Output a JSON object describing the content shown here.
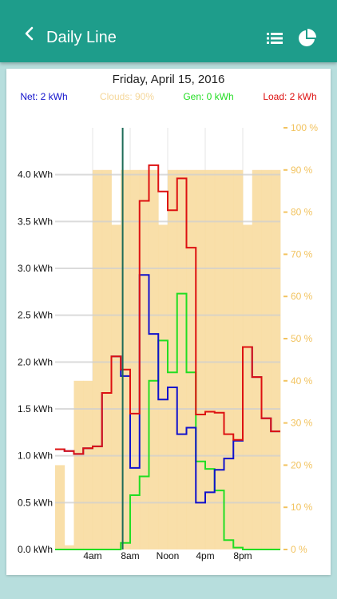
{
  "app_bar": {
    "title": "Daily Line",
    "back_icon": "back-arrow-icon",
    "list_icon": "list-icon",
    "pie_icon": "pie-chart-icon",
    "background": "#1e9d8b"
  },
  "chart_data": {
    "type": "bar+line",
    "title": "Friday, April 15, 2016",
    "legend": [
      {
        "label": "Net: 2 kWh",
        "color": "#1111cc"
      },
      {
        "label": "Clouds: 90%",
        "color": "#f5d79a"
      },
      {
        "label": "Gen: 0 kWh",
        "color": "#22dd22"
      },
      {
        "label": "Load: 2 kWh",
        "color": "#dd1111"
      }
    ],
    "x_ticks": [
      {
        "label": "4am",
        "hour": 4
      },
      {
        "label": "8am",
        "hour": 8
      },
      {
        "label": "Noon",
        "hour": 12
      },
      {
        "label": "4pm",
        "hour": 16
      },
      {
        "label": "8pm",
        "hour": 20
      }
    ],
    "y_left": {
      "min": 0,
      "max": 4.5,
      "ticks": [
        {
          "v": 0,
          "label": "0.0 kWh"
        },
        {
          "v": 0.5,
          "label": "0.5 kWh"
        },
        {
          "v": 1,
          "label": "1.0 kWh"
        },
        {
          "v": 1.5,
          "label": "1.5 kWh"
        },
        {
          "v": 2,
          "label": "2.0 kWh"
        },
        {
          "v": 2.5,
          "label": "2.5 kWh"
        },
        {
          "v": 3,
          "label": "3.0 kWh"
        },
        {
          "v": 3.5,
          "label": "3.5 kWh"
        },
        {
          "v": 4,
          "label": "4.0 kWh"
        }
      ]
    },
    "y_right": {
      "min": 0,
      "max": 100,
      "ticks": [
        {
          "v": 0,
          "label": "0 %"
        },
        {
          "v": 10,
          "label": "10 %"
        },
        {
          "v": 20,
          "label": "20 %"
        },
        {
          "v": 30,
          "label": "30 %"
        },
        {
          "v": 40,
          "label": "40 %"
        },
        {
          "v": 50,
          "label": "50 %"
        },
        {
          "v": 60,
          "label": "60 %"
        },
        {
          "v": 70,
          "label": "70 %"
        },
        {
          "v": 80,
          "label": "80 %"
        },
        {
          "v": 90,
          "label": "90 %"
        },
        {
          "v": 100,
          "label": "100 %"
        }
      ]
    },
    "x_range_hours": [
      0,
      24
    ],
    "current_time_hour": 7.2,
    "clouds_percent": [
      20,
      1,
      40,
      40,
      90,
      90,
      77,
      90,
      90,
      90,
      90,
      77,
      90,
      90,
      90,
      90,
      90,
      90,
      90,
      90,
      77,
      90,
      90,
      90
    ],
    "load_kwh": [
      1.07,
      1.05,
      1.02,
      1.08,
      1.1,
      1.67,
      2.06,
      1.92,
      1.45,
      3.72,
      4.1,
      3.82,
      3.62,
      3.96,
      3.22,
      1.44,
      1.47,
      1.46,
      1.23,
      1.17,
      2.16,
      1.84,
      1.4,
      1.26
    ],
    "net_kwh": [
      1.07,
      1.05,
      1.02,
      1.08,
      1.1,
      1.67,
      2.06,
      1.85,
      0.87,
      2.93,
      2.3,
      1.6,
      1.73,
      1.23,
      1.3,
      0.5,
      0.61,
      0.85,
      0.97,
      1.16,
      2.16,
      1.84,
      1.4,
      1.26
    ],
    "gen_kwh": [
      0,
      0,
      0,
      0,
      0,
      0,
      0,
      0.07,
      0.58,
      0.78,
      1.8,
      2.23,
      1.89,
      2.73,
      1.89,
      0.94,
      0.86,
      0.63,
      0.1,
      0.02,
      0,
      0,
      0,
      0
    ]
  }
}
